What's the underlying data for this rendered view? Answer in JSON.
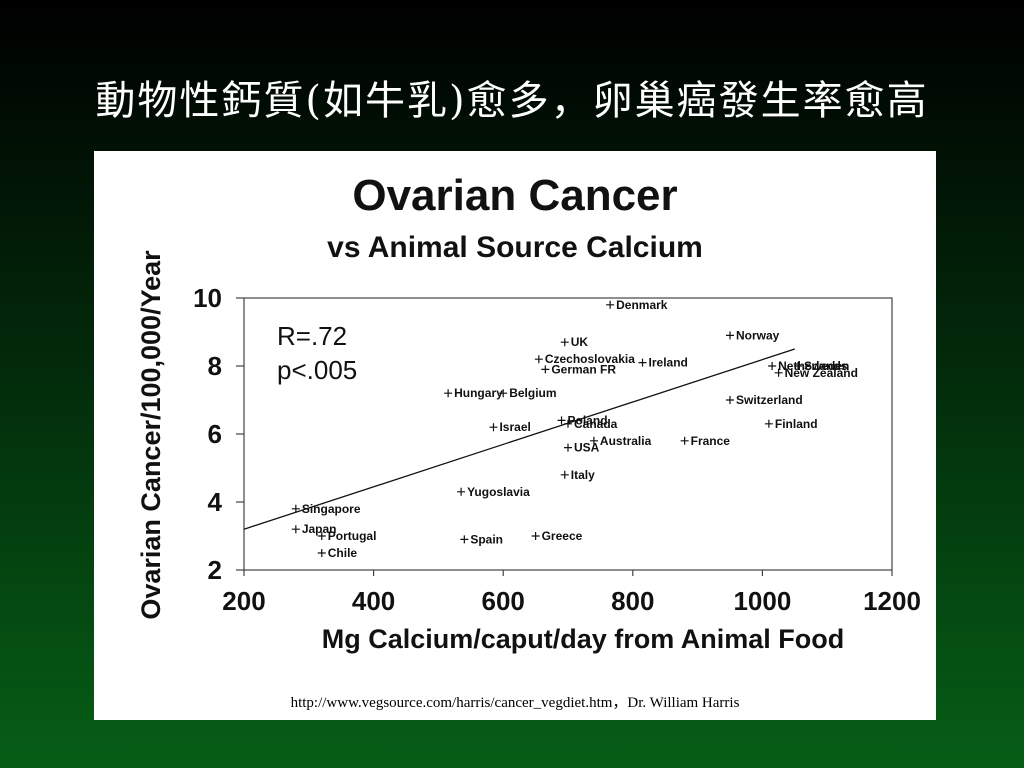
{
  "slide": {
    "title": "動物性鈣質(如牛乳)愈多，卵巢癌發生率愈高",
    "source": "http://www.vegsource.com/harris/cancer_vegdiet.htm，Dr. William Harris"
  },
  "chart_data": {
    "type": "scatter",
    "title": "Ovarian Cancer",
    "subtitle": "vs Animal Source Calcium",
    "xlabel": "Mg Calcium/caput/day from Animal Food",
    "ylabel": "Ovarian Cancer/100,000/Year",
    "xlim": [
      200,
      1200
    ],
    "ylim": [
      2,
      10
    ],
    "xticks": [
      200,
      400,
      600,
      800,
      1000,
      1200
    ],
    "yticks": [
      2,
      4,
      6,
      8,
      10
    ],
    "stats": {
      "r": "R=.72",
      "p": "p<.005"
    },
    "trendline": {
      "x": [
        200,
        1050
      ],
      "y": [
        3.2,
        8.5
      ]
    },
    "points": [
      {
        "label": "Denmark",
        "x": 765,
        "y": 9.8
      },
      {
        "label": "Norway",
        "x": 950,
        "y": 8.9
      },
      {
        "label": "UK",
        "x": 695,
        "y": 8.7
      },
      {
        "label": "Czechoslovakia",
        "x": 655,
        "y": 8.2
      },
      {
        "label": "Ireland",
        "x": 815,
        "y": 8.1
      },
      {
        "label": "German FR",
        "x": 665,
        "y": 7.9
      },
      {
        "label": "Sweden",
        "x": 1055,
        "y": 8.0
      },
      {
        "label": "Netherlands",
        "x": 1015,
        "y": 8.0
      },
      {
        "label": "New Zealand",
        "x": 1025,
        "y": 7.8
      },
      {
        "label": "Hungary",
        "x": 515,
        "y": 7.2
      },
      {
        "label": "Belgium",
        "x": 600,
        "y": 7.2
      },
      {
        "label": "Switzerland",
        "x": 950,
        "y": 7.0
      },
      {
        "label": "Poland",
        "x": 690,
        "y": 6.4
      },
      {
        "label": "Canada",
        "x": 700,
        "y": 6.3
      },
      {
        "label": "Israel",
        "x": 585,
        "y": 6.2
      },
      {
        "label": "Finland",
        "x": 1010,
        "y": 6.3
      },
      {
        "label": "Australia",
        "x": 740,
        "y": 5.8
      },
      {
        "label": "France",
        "x": 880,
        "y": 5.8
      },
      {
        "label": "USA",
        "x": 700,
        "y": 5.6
      },
      {
        "label": "Italy",
        "x": 695,
        "y": 4.8
      },
      {
        "label": "Yugoslavia",
        "x": 535,
        "y": 4.3
      },
      {
        "label": "Singapore",
        "x": 280,
        "y": 3.8
      },
      {
        "label": "Japan",
        "x": 280,
        "y": 3.2
      },
      {
        "label": "Portugal",
        "x": 320,
        "y": 3.0
      },
      {
        "label": "Chile",
        "x": 320,
        "y": 2.5
      },
      {
        "label": "Spain",
        "x": 540,
        "y": 2.9
      },
      {
        "label": "Greece",
        "x": 650,
        "y": 3.0
      }
    ]
  }
}
